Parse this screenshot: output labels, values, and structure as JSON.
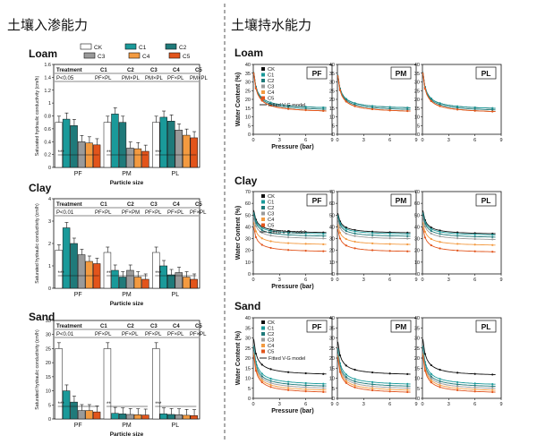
{
  "headings": {
    "left": "土壤入渗能力",
    "right": "土壤持水能力"
  },
  "colors": {
    "CK": "#ffffff",
    "C1": "#1a9a9a",
    "C2": "#1f7a7a",
    "C3": "#9a9a9a",
    "C4": "#f39a40",
    "C5": "#e2541b",
    "fit": "#222222"
  },
  "shared": {
    "legend": [
      "CK",
      "C1",
      "C2",
      "C3",
      "C4",
      "C5"
    ],
    "bar_ylabel": "Saturated hydraulic conductivity (cm/h)",
    "bar_xlabel": "Particle size",
    "wc_ylabel": "Water Content (%)",
    "wc_xlabel": "Pressure (bar)",
    "fit_label": "Fitted V-G model",
    "treatment_header": [
      "Treatment",
      "C1",
      "C2",
      "C3",
      "C4",
      "C5"
    ],
    "sig": "*",
    "sig2": "**",
    "sig3": "***"
  },
  "bar_panels": [
    {
      "soil": "Loam",
      "pvalue": "P<0.05",
      "effects": [
        "PF×PL",
        "PM×PL",
        "PM×PL",
        "PF×PL",
        "PM×PL"
      ],
      "groups": [
        "PF",
        "PM",
        "PL"
      ],
      "ymax": 1.6,
      "yticks": [
        0.0,
        0.2,
        0.4,
        0.6,
        0.8,
        1.0,
        1.2,
        1.4,
        1.6
      ],
      "values": [
        [
          0.7,
          0.75,
          0.65,
          0.4,
          0.38,
          0.35
        ],
        [
          0.7,
          0.83,
          0.7,
          0.3,
          0.29,
          0.25
        ],
        [
          0.7,
          0.78,
          0.72,
          0.58,
          0.5,
          0.46
        ]
      ]
    },
    {
      "soil": "Clay",
      "pvalue": "P<0.01",
      "effects": [
        "PF×PL",
        "PF×PM",
        "PF×PL",
        "PF×PL",
        "PF×PL"
      ],
      "groups": [
        "PF",
        "PM",
        "PL"
      ],
      "ymax": 4,
      "yticks": [
        0,
        1,
        2,
        3,
        4
      ],
      "values": [
        [
          1.7,
          2.7,
          2.0,
          1.5,
          1.2,
          1.1
        ],
        [
          1.6,
          0.8,
          0.5,
          0.8,
          0.5,
          0.4
        ],
        [
          1.6,
          1.0,
          0.6,
          0.7,
          0.5,
          0.4
        ]
      ]
    },
    {
      "soil": "Sand",
      "pvalue": "P<0.01",
      "effects": [
        "PF×PL",
        "PF×PL",
        "PF×PL",
        "PF×PL",
        "PF×PL"
      ],
      "groups": [
        "PF",
        "PM",
        "PL"
      ],
      "ymax": 35,
      "yticks": [
        0,
        5,
        10,
        15,
        20,
        25,
        30,
        35
      ],
      "values": [
        [
          25.0,
          10.0,
          6.0,
          3.0,
          3.0,
          2.5
        ],
        [
          25.0,
          2.0,
          1.8,
          1.6,
          1.5,
          1.4
        ],
        [
          25.0,
          1.8,
          1.6,
          1.5,
          1.3,
          1.2
        ]
      ]
    }
  ],
  "wc_rows": [
    {
      "soil": "Loam",
      "ymax": 40,
      "yticks": [
        0,
        5,
        10,
        15,
        20,
        25,
        30,
        35,
        40
      ],
      "xticks": [
        0,
        3,
        6,
        9
      ],
      "panels": [
        "PF",
        "PM",
        "PL"
      ],
      "series": [
        [
          40,
          14
        ],
        [
          40,
          14
        ],
        [
          40,
          13
        ],
        [
          40,
          12
        ],
        [
          40,
          12
        ],
        [
          40,
          12
        ]
      ]
    },
    {
      "soil": "Clay",
      "ymax": 70,
      "yticks": [
        0,
        10,
        20,
        30,
        40,
        50,
        60,
        70
      ],
      "xticks": [
        0,
        3,
        6,
        9
      ],
      "panels": [
        "PF",
        "PM",
        "PL"
      ],
      "series": [
        [
          58,
          34
        ],
        [
          56,
          33
        ],
        [
          55,
          31
        ],
        [
          52,
          29
        ],
        [
          48,
          24
        ],
        [
          44,
          18
        ]
      ]
    },
    {
      "soil": "Sand",
      "ymax": 40,
      "yticks": [
        0,
        5,
        10,
        15,
        20,
        25,
        30,
        35,
        40
      ],
      "xticks": [
        0,
        3,
        6,
        9
      ],
      "panels": [
        "PF",
        "PM",
        "PL"
      ],
      "series": [
        [
          33,
          11
        ],
        [
          30,
          6
        ],
        [
          28,
          5
        ],
        [
          27,
          4
        ],
        [
          26,
          3
        ],
        [
          25,
          2
        ]
      ]
    }
  ]
}
